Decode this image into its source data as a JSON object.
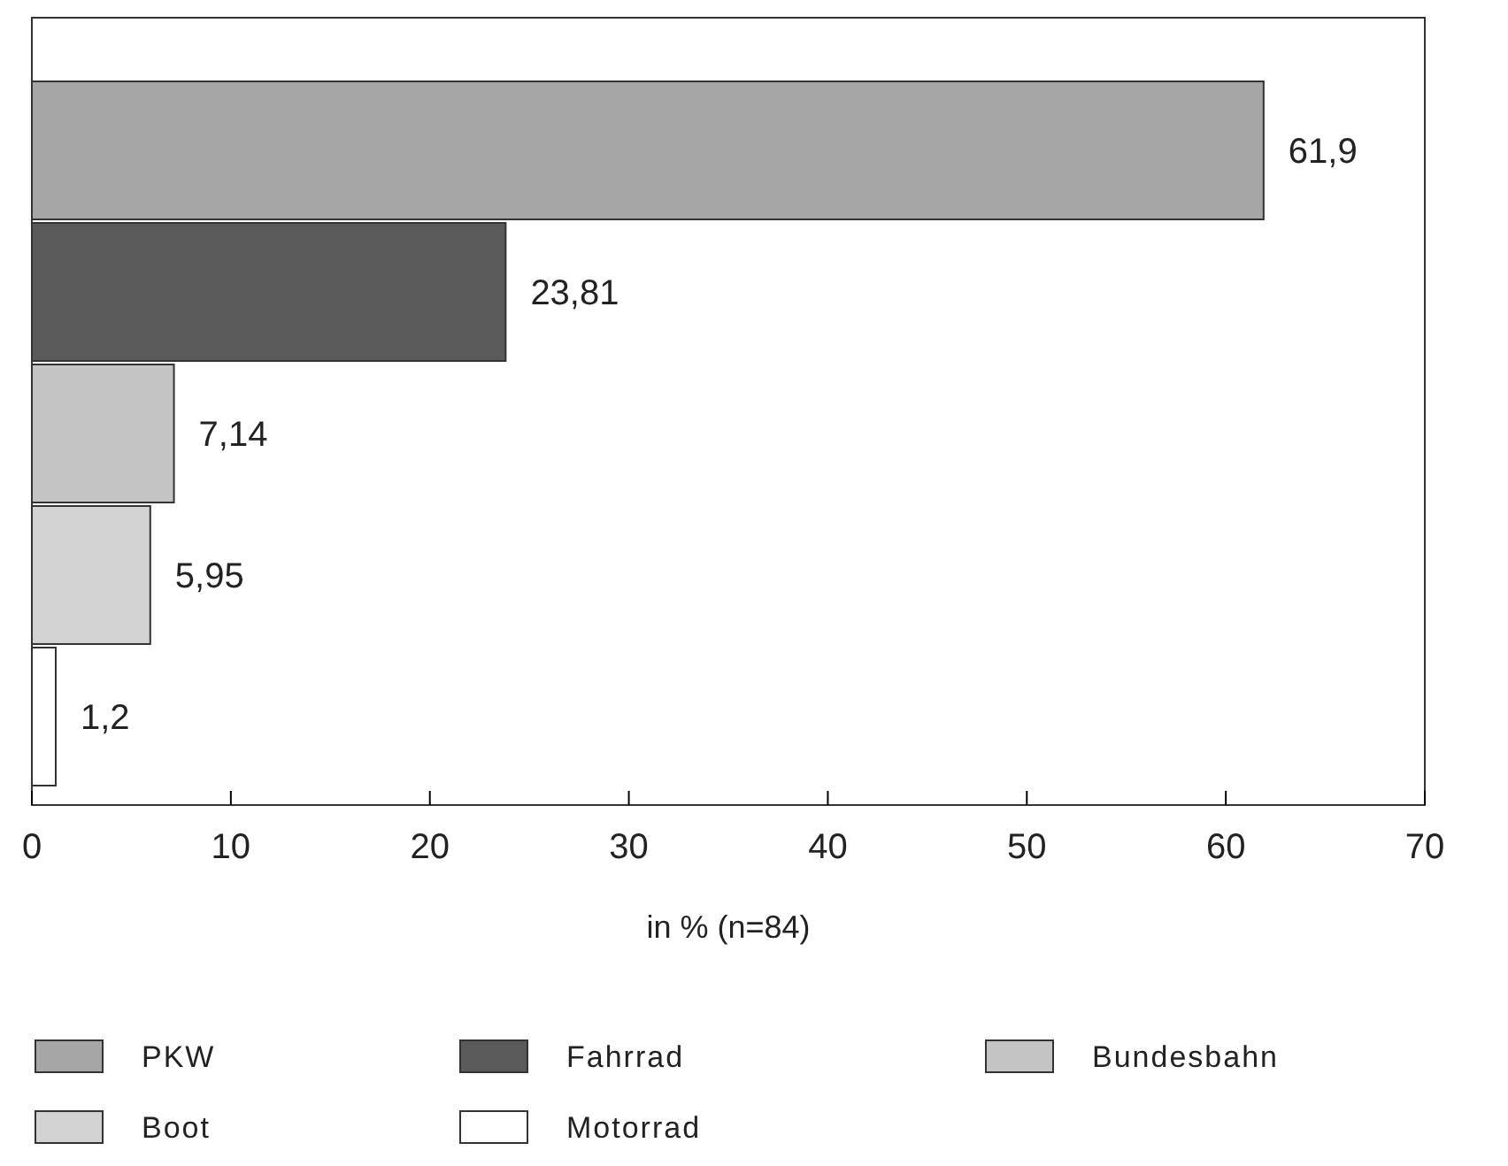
{
  "chart_data": {
    "type": "bar",
    "orientation": "horizontal",
    "stacked": true,
    "xlabel": "in % (n=84)",
    "categories": [
      null,
      null,
      null,
      null,
      null
    ],
    "xlim": [
      0,
      70
    ],
    "xticks": [
      0,
      10,
      20,
      30,
      40,
      50,
      60,
      70
    ],
    "grid": false,
    "legend": "bottom",
    "series": [
      {
        "name": "PKW",
        "color": "#a6a6a6",
        "values": [
          61.9,
          null,
          null,
          null,
          null
        ],
        "value_labels": [
          "61,9",
          null,
          null,
          null,
          null
        ]
      },
      {
        "name": "Fahrrad",
        "color": "#5a5a5a",
        "values": [
          null,
          23.81,
          null,
          null,
          null
        ],
        "value_labels": [
          null,
          "23,81",
          null,
          null,
          null
        ]
      },
      {
        "name": "Bundesbahn",
        "color": "#c4c4c4",
        "values": [
          null,
          null,
          7.14,
          null,
          null
        ],
        "value_labels": [
          null,
          null,
          "7,14",
          null,
          null
        ]
      },
      {
        "name": "Boot",
        "color": "#d2d2d2",
        "values": [
          null,
          null,
          null,
          5.95,
          null
        ],
        "value_labels": [
          null,
          null,
          null,
          "5,95",
          null
        ]
      },
      {
        "name": "Motorrad",
        "color": "#ffffff",
        "values": [
          null,
          null,
          null,
          null,
          1.2
        ],
        "value_labels": [
          null,
          null,
          null,
          null,
          "1,2"
        ]
      }
    ]
  }
}
